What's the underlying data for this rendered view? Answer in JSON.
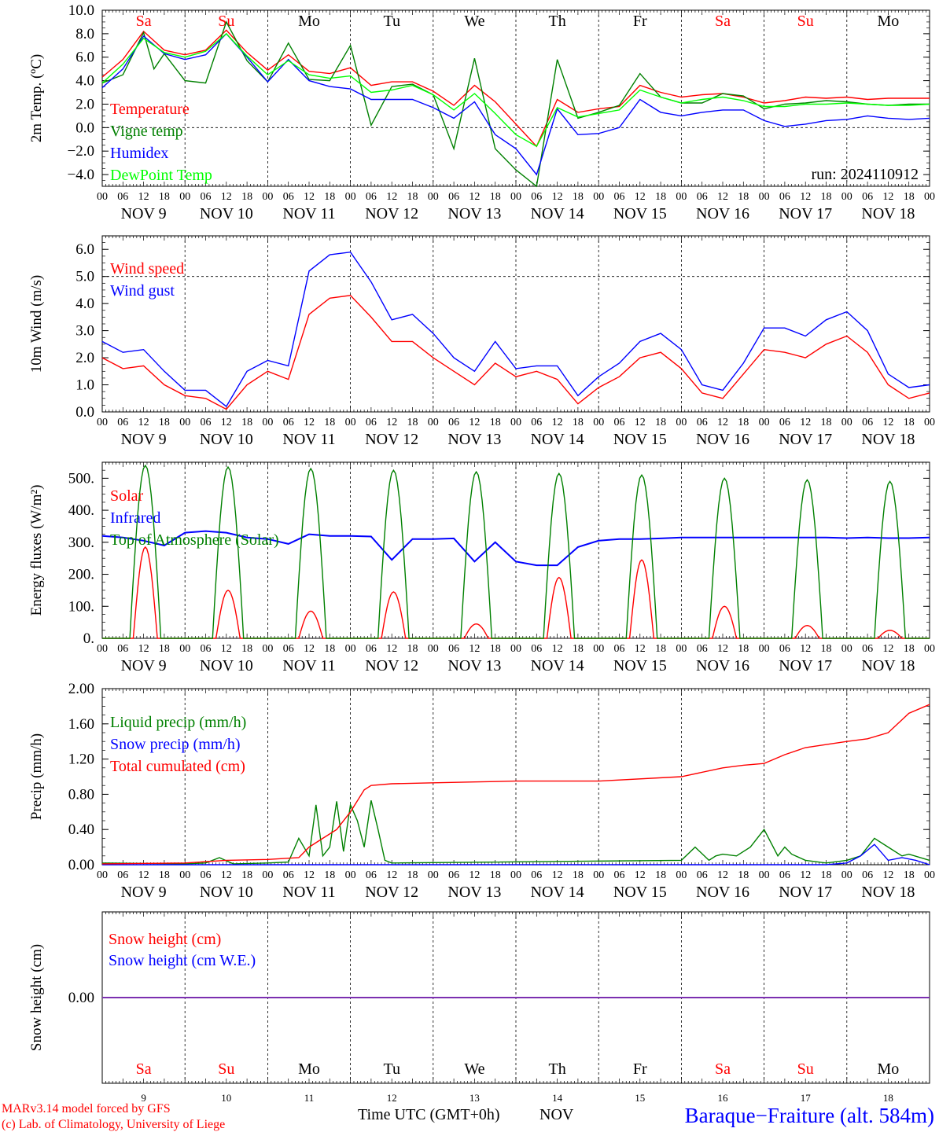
{
  "run_label": "run: 2024110912",
  "footer": {
    "credit_line1": "MARv3.14 model forced by GFS",
    "credit_line2": "(c) Lab. of Climatology, University of Liege",
    "time_label": "Time UTC (GMT+0h)",
    "month_label": "NOV",
    "station": "Baraque−Fraiture (alt. 584m)"
  },
  "days": {
    "weekday_labels": [
      "Sa",
      "Su",
      "Mo",
      "Tu",
      "We",
      "Th",
      "Fr",
      "Sa",
      "Su",
      "Mo"
    ],
    "weekday_colors": [
      "#ff0000",
      "#ff0000",
      "#000000",
      "#000000",
      "#000000",
      "#000000",
      "#000000",
      "#ff0000",
      "#ff0000",
      "#000000"
    ],
    "date_labels": [
      "NOV   9",
      "NOV 10",
      "NOV 11",
      "NOV 12",
      "NOV 13",
      "NOV 14",
      "NOV 15",
      "NOV 16",
      "NOV 17",
      "NOV 18"
    ],
    "day_numbers": [
      "9",
      "10",
      "11",
      "12",
      "13",
      "14",
      "15",
      "16",
      "17",
      "18"
    ],
    "hour_ticks": [
      "00",
      "06",
      "12",
      "18"
    ],
    "final_tick": "00"
  },
  "chart_data": [
    {
      "type": "line",
      "ylabel": "2m Temp. (ºC)",
      "ylim": [
        -5,
        10
      ],
      "yticks": [
        "10.0",
        "8.0",
        "6.0",
        "4.0",
        "2.0",
        "0.0",
        "−2.0",
        "−4.0"
      ],
      "ytick_values": [
        10,
        8,
        6,
        4,
        2,
        0,
        -2,
        -4
      ],
      "dashed_at": [
        0
      ],
      "x_unit": "hours since NOV 9 00 UTC",
      "series": [
        {
          "name": "Temperature",
          "color": "#ff0000",
          "x": [
            0,
            6,
            12,
            18,
            24,
            30,
            36,
            42,
            48,
            54,
            60,
            66,
            72,
            78,
            84,
            90,
            96,
            102,
            108,
            114,
            120,
            126,
            132,
            138,
            144,
            150,
            156,
            162,
            168,
            174,
            180,
            186,
            192,
            198,
            204,
            210,
            216,
            222,
            228,
            234,
            240
          ],
          "y": [
            4.3,
            5.8,
            8.2,
            6.6,
            6.2,
            6.6,
            8.3,
            6.4,
            4.9,
            6.2,
            4.8,
            4.6,
            5.1,
            3.6,
            3.9,
            3.9,
            3.1,
            1.9,
            3.6,
            2.2,
            0.3,
            -1.6,
            2.4,
            1.3,
            1.6,
            1.8,
            3.6,
            3.0,
            2.6,
            2.8,
            2.9,
            2.6,
            2.1,
            2.3,
            2.6,
            2.5,
            2.6,
            2.4,
            2.5,
            2.5,
            2.5
          ]
        },
        {
          "name": "Vigne temp",
          "color": "#008000",
          "x": [
            0,
            6,
            12,
            15,
            18,
            24,
            30,
            36,
            42,
            48,
            54,
            60,
            66,
            72,
            78,
            84,
            90,
            96,
            102,
            108,
            114,
            120,
            126,
            132,
            138,
            144,
            150,
            156,
            162,
            168,
            174,
            180,
            186,
            192,
            198,
            204,
            210,
            216,
            222,
            228,
            234,
            240
          ],
          "y": [
            3.8,
            4.5,
            8.1,
            5.0,
            6.3,
            4.0,
            3.8,
            9.0,
            5.7,
            3.9,
            7.2,
            4.1,
            4.0,
            7.0,
            0.2,
            3.5,
            3.7,
            2.8,
            -1.8,
            5.9,
            -1.8,
            -3.6,
            -5.0,
            5.8,
            0.8,
            1.3,
            1.9,
            4.6,
            2.6,
            2.1,
            2.1,
            2.9,
            2.7,
            1.6,
            2.0,
            2.1,
            2.3,
            2.2,
            2.0,
            1.9,
            2.0,
            2.0
          ]
        },
        {
          "name": "Humidex",
          "color": "#0000ff",
          "x": [
            0,
            6,
            12,
            18,
            24,
            30,
            36,
            42,
            48,
            54,
            60,
            66,
            72,
            78,
            84,
            90,
            96,
            102,
            108,
            114,
            120,
            126,
            132,
            138,
            144,
            150,
            156,
            162,
            168,
            174,
            180,
            186,
            192,
            198,
            204,
            210,
            216,
            222,
            228,
            234,
            240
          ],
          "y": [
            3.4,
            5.0,
            7.8,
            6.3,
            5.8,
            6.2,
            8.0,
            6.0,
            3.9,
            5.8,
            4.0,
            3.5,
            3.3,
            2.4,
            2.4,
            2.4,
            1.7,
            0.8,
            2.2,
            -0.6,
            -1.8,
            -4.0,
            1.6,
            -0.6,
            -0.5,
            0.0,
            2.4,
            1.3,
            1.0,
            1.3,
            1.5,
            1.5,
            0.6,
            0.1,
            0.3,
            0.6,
            0.7,
            1.0,
            0.8,
            0.7,
            0.8
          ]
        },
        {
          "name": "DewPoint Temp",
          "color": "#00ff00",
          "x": [
            0,
            6,
            12,
            18,
            24,
            30,
            36,
            42,
            48,
            54,
            60,
            66,
            72,
            78,
            84,
            90,
            96,
            102,
            108,
            114,
            120,
            126,
            132,
            138,
            144,
            150,
            156,
            162,
            168,
            174,
            180,
            186,
            192,
            198,
            204,
            210,
            216,
            222,
            228,
            234,
            240
          ],
          "y": [
            3.8,
            5.4,
            7.6,
            6.4,
            6.0,
            6.5,
            8.0,
            6.1,
            4.5,
            5.7,
            4.5,
            4.2,
            4.4,
            3.0,
            3.2,
            3.6,
            2.8,
            1.5,
            2.9,
            1.2,
            -0.6,
            -1.6,
            1.7,
            0.9,
            1.2,
            1.5,
            3.2,
            2.6,
            2.1,
            2.4,
            2.6,
            2.3,
            1.8,
            1.8,
            2.0,
            2.0,
            2.1,
            2.0,
            1.9,
            1.9,
            2.0
          ]
        }
      ]
    },
    {
      "type": "line",
      "ylabel": "10m Wind (m/s)",
      "ylim": [
        0,
        6.5
      ],
      "yticks": [
        "6.0",
        "5.0",
        "4.0",
        "3.0",
        "2.0",
        "1.0",
        "0.0"
      ],
      "ytick_values": [
        6,
        5,
        4,
        3,
        2,
        1,
        0
      ],
      "dashed_at": [
        5
      ],
      "x_unit": "hours since NOV 9 00 UTC",
      "series": [
        {
          "name": "Wind speed",
          "color": "#ff0000",
          "x": [
            0,
            6,
            12,
            18,
            24,
            30,
            36,
            42,
            48,
            54,
            60,
            66,
            72,
            78,
            84,
            90,
            96,
            102,
            108,
            114,
            120,
            126,
            132,
            138,
            144,
            150,
            156,
            162,
            168,
            174,
            180,
            186,
            192,
            198,
            204,
            210,
            216,
            222,
            228,
            234,
            240
          ],
          "y": [
            2.0,
            1.6,
            1.7,
            1.0,
            0.6,
            0.5,
            0.1,
            1.0,
            1.5,
            1.2,
            3.6,
            4.2,
            4.3,
            3.5,
            2.6,
            2.6,
            2.0,
            1.5,
            1.0,
            1.8,
            1.3,
            1.5,
            1.2,
            0.3,
            0.9,
            1.3,
            2.0,
            2.2,
            1.6,
            0.7,
            0.5,
            1.4,
            2.3,
            2.2,
            2.0,
            2.5,
            2.8,
            2.2,
            1.0,
            0.5,
            0.7
          ]
        },
        {
          "name": "Wind gust",
          "color": "#0000ff",
          "x": [
            0,
            6,
            12,
            18,
            24,
            30,
            36,
            42,
            48,
            54,
            60,
            66,
            72,
            78,
            84,
            90,
            96,
            102,
            108,
            114,
            120,
            126,
            132,
            138,
            144,
            150,
            156,
            162,
            168,
            174,
            180,
            186,
            192,
            198,
            204,
            210,
            216,
            222,
            228,
            234,
            240
          ],
          "y": [
            2.6,
            2.2,
            2.3,
            1.5,
            0.8,
            0.8,
            0.2,
            1.5,
            1.9,
            1.7,
            5.2,
            5.8,
            5.9,
            4.8,
            3.4,
            3.6,
            2.9,
            2.0,
            1.5,
            2.6,
            1.6,
            1.7,
            1.7,
            0.6,
            1.3,
            1.8,
            2.6,
            2.9,
            2.3,
            1.0,
            0.8,
            1.8,
            3.1,
            3.1,
            2.8,
            3.4,
            3.7,
            3.0,
            1.4,
            0.9,
            1.0
          ]
        }
      ]
    },
    {
      "type": "line",
      "ylabel": "Energy fluxes (W/m²)",
      "ylim": [
        0,
        550
      ],
      "yticks": [
        "500.",
        "400.",
        "300.",
        "200.",
        "100.",
        "0."
      ],
      "ytick_values": [
        500,
        400,
        300,
        200,
        100,
        0
      ],
      "dashed_at": [],
      "x_unit": "hours since NOV 9 00 UTC",
      "series": [
        {
          "name": "Solar",
          "color": "#ff0000",
          "day_peaks": [
            285,
            150,
            85,
            145,
            45,
            190,
            245,
            100,
            40,
            25
          ]
        },
        {
          "name": "Infrared",
          "color": "#0000ff",
          "x": [
            0,
            6,
            12,
            18,
            24,
            30,
            36,
            42,
            48,
            54,
            60,
            66,
            72,
            78,
            84,
            90,
            96,
            102,
            108,
            114,
            120,
            126,
            132,
            138,
            144,
            150,
            156,
            162,
            168,
            174,
            180,
            186,
            192,
            198,
            204,
            210,
            216,
            222,
            228,
            234,
            240
          ],
          "y": [
            320,
            315,
            305,
            290,
            330,
            335,
            330,
            315,
            310,
            295,
            325,
            320,
            320,
            318,
            245,
            310,
            310,
            312,
            240,
            300,
            240,
            228,
            228,
            285,
            305,
            310,
            310,
            312,
            315,
            315,
            315,
            315,
            315,
            315,
            315,
            315,
            313,
            315,
            313,
            313,
            315
          ]
        },
        {
          "name": "Top of Atmosphere (Solar)",
          "color": "#008000",
          "day_peaks": [
            540,
            535,
            530,
            525,
            520,
            515,
            510,
            500,
            495,
            490
          ]
        }
      ]
    },
    {
      "type": "line",
      "ylabel": "Precip (mm/h)",
      "ylim": [
        0,
        2
      ],
      "yticks": [
        "2.00",
        "1.60",
        "1.20",
        "0.80",
        "0.40",
        "0.00"
      ],
      "ytick_values": [
        2.0,
        1.6,
        1.2,
        0.8,
        0.4,
        0.0
      ],
      "dashed_at": [],
      "x_unit": "hours since NOV 9 00 UTC",
      "series": [
        {
          "name": "Liquid precip (mm/h)",
          "color": "#008000",
          "x": [
            0,
            24,
            30,
            34,
            38,
            48,
            54,
            57,
            60,
            62,
            64,
            66,
            68,
            70,
            72,
            74,
            76,
            78,
            80,
            82,
            84,
            168,
            172,
            176,
            178,
            180,
            184,
            188,
            192,
            196,
            198,
            200,
            204,
            210,
            216,
            220,
            224,
            228,
            232,
            234,
            240
          ],
          "y": [
            0.02,
            0.01,
            0.02,
            0.08,
            0.01,
            0.02,
            0.03,
            0.3,
            0.1,
            0.68,
            0.1,
            0.2,
            0.72,
            0.15,
            0.68,
            0.5,
            0.2,
            0.73,
            0.4,
            0.05,
            0.02,
            0.05,
            0.2,
            0.05,
            0.1,
            0.12,
            0.1,
            0.2,
            0.4,
            0.1,
            0.2,
            0.12,
            0.05,
            0.02,
            0.05,
            0.1,
            0.3,
            0.2,
            0.1,
            0.12,
            0.05
          ]
        },
        {
          "name": "Snow precip (mm/h)",
          "color": "#0000ff",
          "x": [
            0,
            210,
            216,
            220,
            224,
            228,
            232,
            236,
            240
          ],
          "y": [
            0.0,
            0.0,
            0.02,
            0.1,
            0.23,
            0.05,
            0.08,
            0.05,
            0.0
          ]
        },
        {
          "name": "Total cumulated (cm)",
          "color": "#ff0000",
          "x": [
            0,
            24,
            36,
            48,
            57,
            60,
            64,
            68,
            72,
            76,
            78,
            84,
            96,
            108,
            120,
            144,
            168,
            180,
            186,
            192,
            198,
            204,
            216,
            222,
            228,
            234,
            240
          ],
          "y": [
            0.01,
            0.02,
            0.05,
            0.06,
            0.08,
            0.2,
            0.3,
            0.4,
            0.6,
            0.85,
            0.9,
            0.92,
            0.93,
            0.94,
            0.95,
            0.95,
            1.0,
            1.1,
            1.13,
            1.15,
            1.25,
            1.33,
            1.4,
            1.43,
            1.5,
            1.72,
            1.82
          ]
        }
      ]
    },
    {
      "type": "line",
      "ylabel": "Snow height (cm)",
      "ylim": [
        -1,
        1
      ],
      "yticks": [
        "0.00"
      ],
      "ytick_values": [
        0
      ],
      "dashed_at": [],
      "x_unit": "hours since NOV 9 00 UTC",
      "series": [
        {
          "name": "Snow height (cm)",
          "color": "#ff0000",
          "x": [
            0,
            240
          ],
          "y": [
            0,
            0
          ]
        },
        {
          "name": "Snow height (cm W.E.)",
          "color": "#0000ff",
          "x": [
            0,
            240
          ],
          "y": [
            0,
            0
          ]
        }
      ]
    }
  ]
}
